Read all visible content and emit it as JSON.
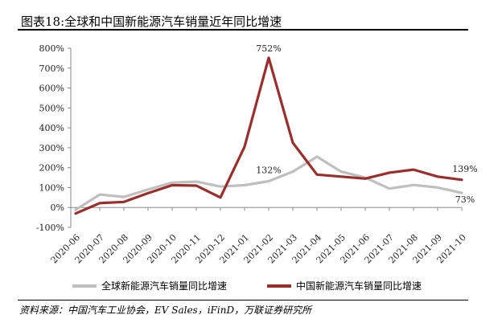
{
  "top_fragment": "",
  "figure_title": "图表18:全球和中国新能源汽车销量近年同比增速",
  "source_note": "资料来源：中国汽车工业协会，EV Sales，iFinD，万联证券研究所",
  "chart_data": {
    "type": "line",
    "title": "图表18:全球和中国新能源汽车销量近年同比增速",
    "xlabel": "",
    "ylabel": "",
    "ylim": [
      -100,
      800
    ],
    "yticks": [
      -100,
      0,
      100,
      200,
      300,
      400,
      500,
      600,
      700,
      800
    ],
    "ytick_labels": [
      "-100%",
      "0%",
      "100%",
      "200%",
      "300%",
      "400%",
      "500%",
      "600%",
      "700%",
      "800%"
    ],
    "categories": [
      "2020-06",
      "2020-07",
      "2020-08",
      "2020-09",
      "2020-10",
      "2020-11",
      "2020-12",
      "2021-01",
      "2021-02",
      "2021-03",
      "2021-04",
      "2021-05",
      "2021-06",
      "2021-07",
      "2021-08",
      "2021-09",
      "2021-10"
    ],
    "grid": false,
    "legend_position": "bottom",
    "series": [
      {
        "name": "全球新能源汽车销量同比增速",
        "color": "#bfbfbf",
        "values": [
          -12,
          65,
          53,
          90,
          125,
          130,
          105,
          112,
          132,
          180,
          255,
          180,
          150,
          95,
          113,
          100,
          73
        ]
      },
      {
        "name": "中国新能源汽车销量同比增速",
        "color": "#9b2d2a",
        "values": [
          -30,
          22,
          28,
          72,
          112,
          110,
          50,
          305,
          752,
          325,
          165,
          155,
          145,
          175,
          190,
          155,
          139
        ]
      }
    ],
    "annotations": [
      {
        "series": 1,
        "index": 8,
        "text": "752%"
      },
      {
        "series": 0,
        "index": 8,
        "text": "132%"
      },
      {
        "series": 1,
        "index": 16,
        "text": "139%"
      },
      {
        "series": 0,
        "index": 16,
        "text": "73%"
      }
    ]
  }
}
